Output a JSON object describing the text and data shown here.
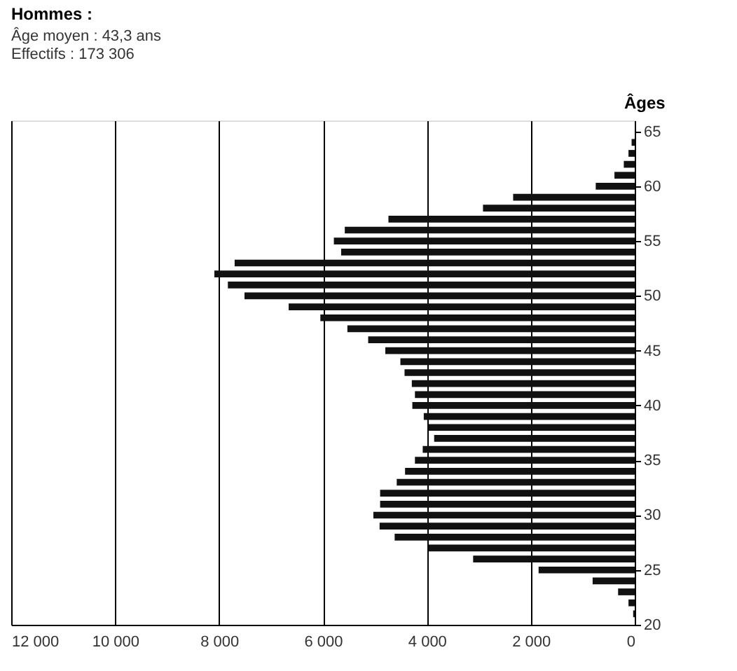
{
  "chart_data": {
    "type": "bar",
    "orientation": "horizontal",
    "title": "Hommes :",
    "subtitle": [
      "Âge moyen : 43,3 ans",
      "Effectifs : 173 306"
    ],
    "ylabel": "Âges",
    "x": [
      64,
      63,
      62,
      61,
      60,
      59,
      58,
      57,
      56,
      55,
      54,
      53,
      52,
      51,
      50,
      49,
      48,
      47,
      46,
      45,
      44,
      43,
      42,
      41,
      40,
      39,
      38,
      37,
      36,
      35,
      34,
      33,
      32,
      31,
      30,
      29,
      28,
      27,
      26,
      25,
      24,
      23,
      22,
      21
    ],
    "values": [
      60,
      120,
      210,
      390,
      750,
      2340,
      2920,
      4740,
      5580,
      5790,
      5650,
      7700,
      8090,
      7830,
      7510,
      6660,
      6050,
      5530,
      5130,
      4800,
      4510,
      4430,
      4290,
      4230,
      4280,
      4060,
      3970,
      3860,
      4080,
      4230,
      4420,
      4580,
      4900,
      4900,
      5030,
      4910,
      4620,
      3970,
      3110,
      1850,
      810,
      320,
      120,
      30
    ],
    "color": "#111111",
    "xlim": [
      12000,
      0
    ],
    "xticks": [
      {
        "value": 12000,
        "label": "12 000"
      },
      {
        "value": 10000,
        "label": "10 000"
      },
      {
        "value": 8000,
        "label": "8 000"
      },
      {
        "value": 6000,
        "label": "6 000"
      },
      {
        "value": 4000,
        "label": "4 000"
      },
      {
        "value": 2000,
        "label": "2 000"
      },
      0
    ],
    "ylim": [
      20,
      66
    ],
    "yticks": [
      20,
      25,
      30,
      35,
      40,
      45,
      50,
      55,
      60,
      65
    ],
    "grid": "x"
  }
}
